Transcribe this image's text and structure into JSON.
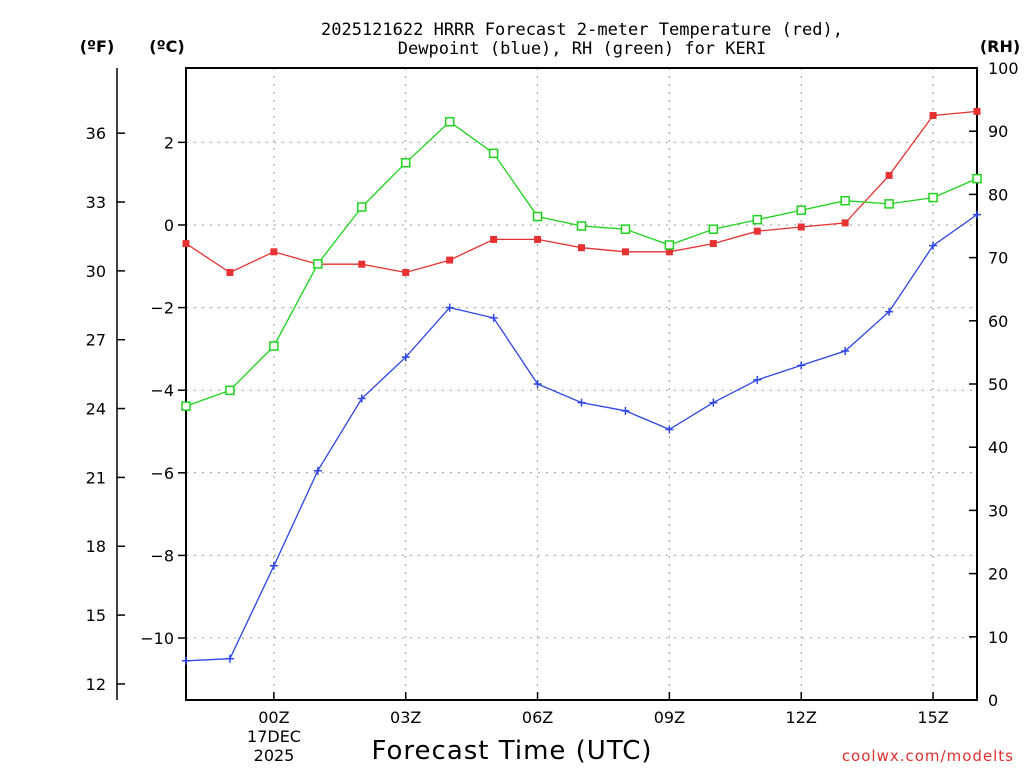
{
  "chart_data": {
    "type": "line",
    "title_line1": "2025121622 HRRR Forecast 2-meter Temperature (red),",
    "title_line2": "Dewpoint (blue), RH (green) for KERI",
    "xlabel": "Forecast Time (UTC)",
    "credit": "coolwx.com/modelts",
    "unit_f": "(ºF)",
    "unit_c": "(ºC)",
    "unit_rh": "(RH)",
    "x_hours": [
      -2,
      -1,
      0,
      1,
      2,
      3,
      4,
      5,
      6,
      7,
      8,
      9,
      10,
      11,
      12,
      13,
      14,
      15,
      16
    ],
    "xlim": [
      -2,
      16
    ],
    "x_ticks": [
      {
        "hour": 0,
        "label": "00Z"
      },
      {
        "hour": 3,
        "label": "03Z"
      },
      {
        "hour": 6,
        "label": "06Z"
      },
      {
        "hour": 9,
        "label": "09Z"
      },
      {
        "hour": 12,
        "label": "12Z"
      },
      {
        "hour": 15,
        "label": "15Z"
      }
    ],
    "date_label1": "17DEC",
    "date_label2": "2025",
    "celsius_axis": {
      "range": [
        -11.5,
        3.8
      ],
      "ticks": [
        2,
        0,
        -2,
        -4,
        -6,
        -8,
        -10
      ],
      "labels": [
        "2",
        "0",
        "−2",
        "−4",
        "−6",
        "−8",
        "−10"
      ]
    },
    "fahrenheit_axis": {
      "ticks": [
        36,
        33,
        30,
        27,
        24,
        21,
        18,
        15,
        12
      ],
      "labels": [
        "36",
        "33",
        "30",
        "27",
        "24",
        "21",
        "18",
        "15",
        "12"
      ]
    },
    "rh_axis": {
      "range": [
        0,
        100
      ],
      "ticks": [
        100,
        90,
        80,
        70,
        60,
        50,
        40,
        30,
        20,
        10,
        0
      ],
      "labels": [
        "100",
        "90",
        "80",
        "70",
        "60",
        "50",
        "40",
        "30",
        "20",
        "10",
        "0"
      ]
    },
    "series": [
      {
        "name": "Temperature",
        "axis": "C",
        "color": "#e63232",
        "marker": "filled-square",
        "values": [
          -0.45,
          -1.15,
          -0.65,
          -0.95,
          -0.95,
          -1.15,
          -0.85,
          -0.35,
          -0.35,
          -0.55,
          -0.65,
          -0.65,
          -0.45,
          -0.15,
          -0.05,
          0.05,
          1.2,
          2.65,
          2.75
        ]
      },
      {
        "name": "Dewpoint",
        "axis": "C",
        "color": "#2e46e6",
        "marker": "plus",
        "values": [
          -10.55,
          -10.5,
          -8.25,
          -5.95,
          -4.2,
          -3.2,
          -2.0,
          -2.25,
          -3.85,
          -4.3,
          -4.5,
          -4.95,
          -4.3,
          -3.75,
          -3.4,
          -3.05,
          -2.1,
          -0.5,
          0.25
        ]
      },
      {
        "name": "RH",
        "axis": "RH",
        "color": "#1ed21e",
        "marker": "open-square",
        "values": [
          46.5,
          49,
          56,
          69,
          78,
          85,
          91.5,
          86.5,
          76.5,
          75,
          74.5,
          72,
          74.5,
          76,
          77.5,
          79,
          78.5,
          79.5,
          82.5
        ]
      }
    ]
  }
}
